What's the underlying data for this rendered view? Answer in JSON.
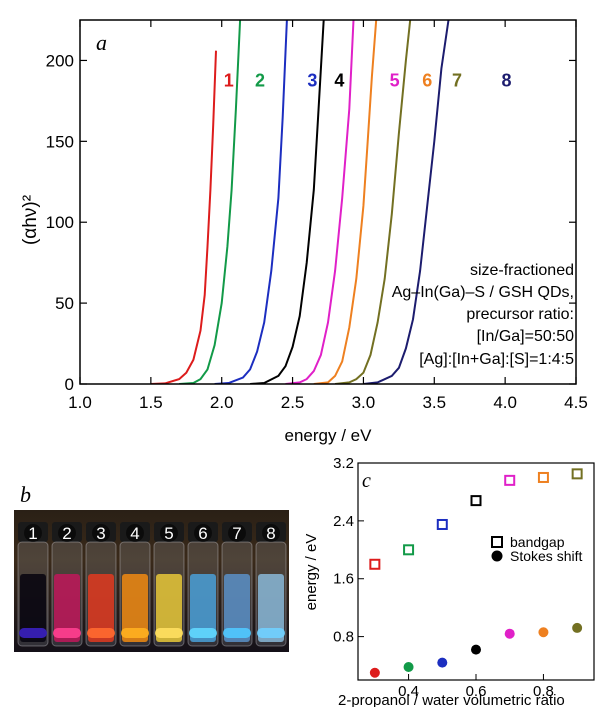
{
  "panel_a_letter": "a",
  "panel_b_letter": "b",
  "panel_c_letter": "c",
  "annotation_lines": [
    "size-fractioned",
    "Ag–In(Ga)–S / GSH QDs,",
    "precursor ratio:",
    "[In/Ga]=50:50",
    "[Ag]:[In+Ga]:[S]=1:4:5"
  ],
  "photo_labels": [
    "1",
    "2",
    "3",
    "4",
    "5",
    "6",
    "7",
    "8"
  ],
  "chart_data": [
    {
      "id": "absorption",
      "type": "line",
      "xlabel": "energy / eV",
      "ylabel": "(αhν)²",
      "xlim": [
        1.0,
        4.5
      ],
      "ylim": [
        0,
        225
      ],
      "xticks": [
        1.0,
        1.5,
        2.0,
        2.5,
        3.0,
        3.5,
        4.0,
        4.5
      ],
      "xtick_labels": [
        "1.0",
        "1.5",
        "2.0",
        "2.5",
        "3.0",
        "3.5",
        "4.0",
        "4.5"
      ],
      "yticks": [
        0,
        50,
        100,
        150,
        200
      ],
      "grid": false,
      "series": [
        {
          "name": "1",
          "color": "#dd1c1c",
          "label_x": 2.05,
          "label_y": 184,
          "points": [
            [
              1.5,
              0
            ],
            [
              1.6,
              0.4
            ],
            [
              1.7,
              3
            ],
            [
              1.75,
              7
            ],
            [
              1.8,
              15
            ],
            [
              1.85,
              33
            ],
            [
              1.88,
              55
            ],
            [
              1.9,
              85
            ],
            [
              1.92,
              120
            ],
            [
              1.94,
              160
            ],
            [
              1.96,
              206
            ]
          ]
        },
        {
          "name": "2",
          "color": "#129a48",
          "label_x": 2.27,
          "label_y": 184,
          "points": [
            [
              1.7,
              0
            ],
            [
              1.8,
              0.6
            ],
            [
              1.85,
              3
            ],
            [
              1.9,
              9
            ],
            [
              1.95,
              24
            ],
            [
              2.0,
              50
            ],
            [
              2.04,
              85
            ],
            [
              2.07,
              120
            ],
            [
              2.1,
              170
            ],
            [
              2.13,
              225
            ]
          ]
        },
        {
          "name": "3",
          "color": "#1c2ec0",
          "label_x": 2.64,
          "label_y": 184,
          "points": [
            [
              1.95,
              0
            ],
            [
              2.05,
              0.6
            ],
            [
              2.15,
              4
            ],
            [
              2.2,
              9
            ],
            [
              2.25,
              20
            ],
            [
              2.3,
              38
            ],
            [
              2.35,
              70
            ],
            [
              2.4,
              115
            ],
            [
              2.43,
              165
            ],
            [
              2.46,
              225
            ]
          ]
        },
        {
          "name": "4",
          "color": "#000000",
          "label_x": 2.83,
          "label_y": 184,
          "points": [
            [
              2.2,
              0
            ],
            [
              2.3,
              0.6
            ],
            [
              2.4,
              5
            ],
            [
              2.45,
              11
            ],
            [
              2.5,
              23
            ],
            [
              2.55,
              42
            ],
            [
              2.6,
              75
            ],
            [
              2.65,
              120
            ],
            [
              2.68,
              165
            ],
            [
              2.72,
              225
            ]
          ]
        },
        {
          "name": "5",
          "color": "#e020c8",
          "label_x": 3.22,
          "label_y": 184,
          "points": [
            [
              2.45,
              0
            ],
            [
              2.55,
              1
            ],
            [
              2.6,
              3
            ],
            [
              2.65,
              8
            ],
            [
              2.7,
              18
            ],
            [
              2.75,
              38
            ],
            [
              2.8,
              70
            ],
            [
              2.85,
              115
            ],
            [
              2.9,
              170
            ],
            [
              2.93,
              225
            ]
          ]
        },
        {
          "name": "6",
          "color": "#ee8020",
          "label_x": 3.45,
          "label_y": 184,
          "points": [
            [
              2.65,
              0
            ],
            [
              2.75,
              1
            ],
            [
              2.8,
              5
            ],
            [
              2.85,
              14
            ],
            [
              2.9,
              35
            ],
            [
              2.95,
              65
            ],
            [
              3.0,
              110
            ],
            [
              3.03,
              150
            ],
            [
              3.06,
              190
            ],
            [
              3.09,
              225
            ]
          ]
        },
        {
          "name": "7",
          "color": "#737022",
          "label_x": 3.66,
          "label_y": 184,
          "points": [
            [
              2.8,
              0
            ],
            [
              2.9,
              1
            ],
            [
              2.95,
              3
            ],
            [
              3.0,
              7
            ],
            [
              3.05,
              18
            ],
            [
              3.1,
              38
            ],
            [
              3.15,
              65
            ],
            [
              3.2,
              105
            ],
            [
              3.25,
              155
            ],
            [
              3.3,
              200
            ],
            [
              3.33,
              225
            ]
          ]
        },
        {
          "name": "8",
          "color": "#1c1c6e",
          "label_x": 4.01,
          "label_y": 184,
          "points": [
            [
              3.0,
              0
            ],
            [
              3.1,
              1
            ],
            [
              3.2,
              5
            ],
            [
              3.25,
              10
            ],
            [
              3.3,
              22
            ],
            [
              3.35,
              40
            ],
            [
              3.4,
              70
            ],
            [
              3.45,
              110
            ],
            [
              3.5,
              150
            ],
            [
              3.55,
              195
            ],
            [
              3.6,
              225
            ]
          ]
        }
      ]
    },
    {
      "id": "energies",
      "type": "scatter",
      "xlabel": "2-propanol / water volumetric ratio",
      "ylabel": "energy / eV",
      "xlim": [
        0.25,
        0.95
      ],
      "ylim": [
        0.2,
        3.2
      ],
      "xticks": [
        0.4,
        0.6,
        0.8
      ],
      "xtick_labels": [
        "0.4",
        "0.6",
        "0.8"
      ],
      "yticks": [
        0.8,
        1.6,
        2.4,
        3.2
      ],
      "ytick_labels": [
        "0.8",
        "1.6",
        "2.4",
        "3.2"
      ],
      "legend": "right",
      "series": [
        {
          "name": "bandgap",
          "marker": "open-square",
          "x": [
            0.3,
            0.4,
            0.5,
            0.6,
            0.7,
            0.8,
            0.9
          ],
          "y": [
            1.8,
            2.0,
            2.35,
            2.68,
            2.96,
            3.0,
            3.05
          ]
        },
        {
          "name": "Stokes shift",
          "marker": "filled-circle",
          "x": [
            0.3,
            0.4,
            0.5,
            0.6,
            0.7,
            0.8,
            0.9
          ],
          "y": [
            0.3,
            0.38,
            0.44,
            0.62,
            0.84,
            0.86,
            0.92
          ]
        }
      ],
      "point_colors": [
        "#dd1c1c",
        "#129a48",
        "#1c2ec0",
        "#000000",
        "#e020c8",
        "#ee8020",
        "#737022"
      ]
    }
  ]
}
